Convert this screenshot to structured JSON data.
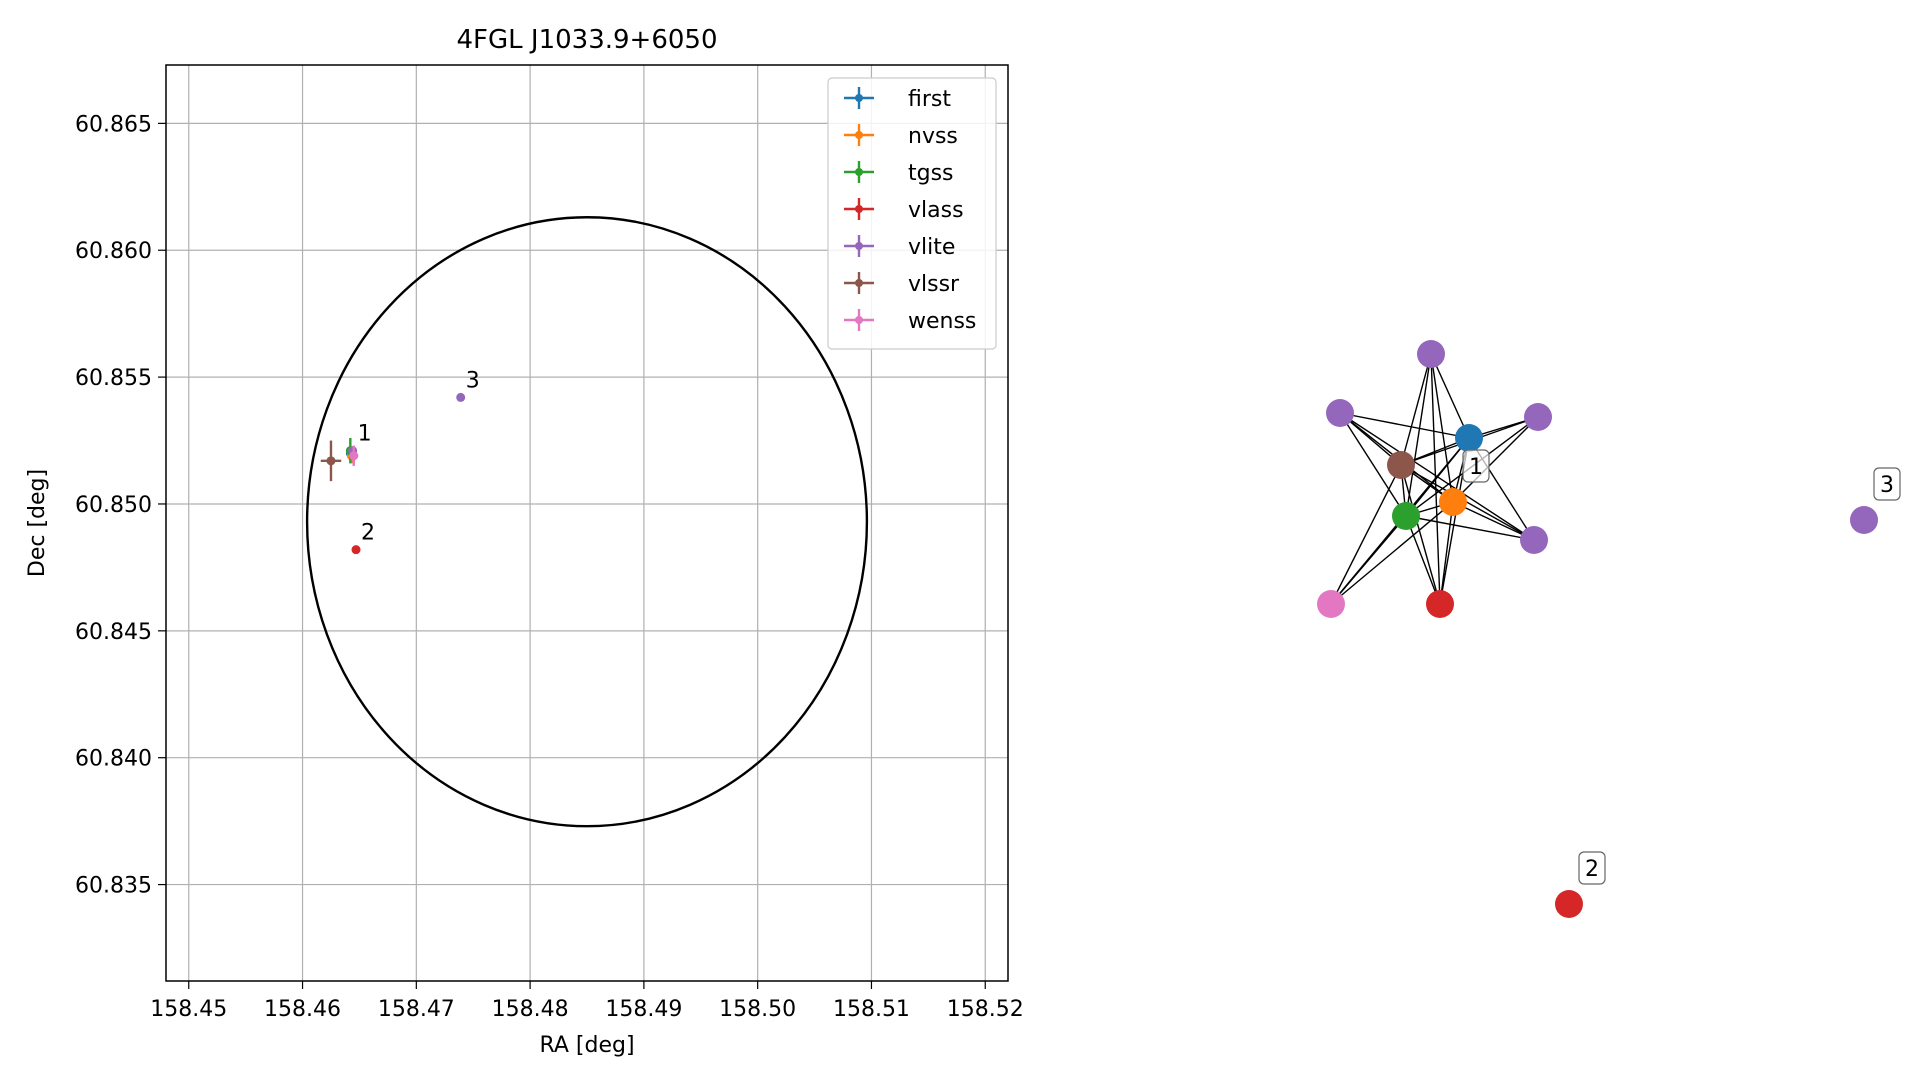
{
  "chart_data": [
    {
      "type": "scatter",
      "title": "4FGL J1033.9+6050",
      "xlabel": "RA [deg]",
      "ylabel": "Dec [deg]",
      "xlim": [
        158.448,
        158.522
      ],
      "ylim": [
        60.8312,
        60.8673
      ],
      "xticks": [
        "158.45",
        "158.46",
        "158.47",
        "158.48",
        "158.49",
        "158.50",
        "158.51",
        "158.52"
      ],
      "yticks": [
        "60.835",
        "60.840",
        "60.845",
        "60.850",
        "60.855",
        "60.860",
        "60.865"
      ],
      "grid": true,
      "legend_position": "top-right",
      "legend": [
        "first",
        "nvss",
        "tgss",
        "vlass",
        "vlite",
        "vlssr",
        "wenss"
      ],
      "colors": {
        "first": "#1f77b4",
        "nvss": "#ff7f0e",
        "tgss": "#2ca02c",
        "vlass": "#d62728",
        "vlite": "#9467bd",
        "vlssr": "#8c564b",
        "wenss": "#e377c2"
      },
      "error_ellipse": {
        "center": [
          158.485,
          60.8493
        ],
        "ra_radius": 0.0246,
        "dec_radius": 0.012
      },
      "points": [
        {
          "survey": "first",
          "ra": 158.4642,
          "dec": 60.852,
          "ra_err": 0.0002,
          "dec_err": 0.0002
        },
        {
          "survey": "nvss",
          "ra": 158.4643,
          "dec": 60.8519,
          "ra_err": 0.0003,
          "dec_err": 0.0003
        },
        {
          "survey": "tgss",
          "ra": 158.4642,
          "dec": 60.8521,
          "ra_err": 0.0002,
          "dec_err": 0.0005
        },
        {
          "survey": "vlite",
          "ra": 158.4644,
          "dec": 60.8521,
          "ra_err": 0.0001,
          "dec_err": 0.0001
        },
        {
          "survey": "wenss",
          "ra": 158.4645,
          "dec": 60.8519,
          "ra_err": 0.0004,
          "dec_err": 0.0004
        },
        {
          "survey": "vlssr",
          "ra": 158.4625,
          "dec": 60.8517,
          "ra_err": 0.0009,
          "dec_err": 0.0008
        },
        {
          "survey": "vlass",
          "ra": 158.4647,
          "dec": 60.8482,
          "ra_err": 0.0001,
          "dec_err": 0.0001
        },
        {
          "survey": "vlite",
          "ra": 158.4739,
          "dec": 60.8542,
          "ra_err": 0.0001,
          "dec_err": 0.0001
        }
      ],
      "annotations": [
        {
          "text": "1",
          "ra": 158.4644,
          "dec": 60.8521
        },
        {
          "text": "2",
          "ra": 158.4647,
          "dec": 60.8482
        },
        {
          "text": "3",
          "ra": 158.4739,
          "dec": 60.8542
        }
      ]
    },
    {
      "type": "network",
      "nodes": [
        {
          "id": "n_vlite_top",
          "survey": "vlite"
        },
        {
          "id": "n_vlite_left",
          "survey": "vlite"
        },
        {
          "id": "n_vlite_right",
          "survey": "vlite"
        },
        {
          "id": "n_vlite_lowright",
          "survey": "vlite"
        },
        {
          "id": "n_first",
          "survey": "first"
        },
        {
          "id": "n_vlssr",
          "survey": "vlssr"
        },
        {
          "id": "n_nvss",
          "survey": "nvss"
        },
        {
          "id": "n_tgss",
          "survey": "tgss"
        },
        {
          "id": "n_wenss",
          "survey": "wenss"
        },
        {
          "id": "n_vlass_1",
          "survey": "vlass"
        },
        {
          "id": "n_vlite_3",
          "survey": "vlite"
        },
        {
          "id": "n_vlass_2",
          "survey": "vlass"
        }
      ],
      "edges": [
        [
          "n_vlite_top",
          "n_vlssr"
        ],
        [
          "n_vlite_top",
          "n_nvss"
        ],
        [
          "n_vlite_top",
          "n_tgss"
        ],
        [
          "n_vlite_top",
          "n_first"
        ],
        [
          "n_vlite_top",
          "n_vlass_1"
        ],
        [
          "n_vlite_left",
          "n_first"
        ],
        [
          "n_vlite_left",
          "n_vlssr"
        ],
        [
          "n_vlite_left",
          "n_tgss"
        ],
        [
          "n_vlite_left",
          "n_nvss"
        ],
        [
          "n_vlite_left",
          "n_vlite_lowright"
        ],
        [
          "n_vlite_right",
          "n_vlssr"
        ],
        [
          "n_vlite_right",
          "n_first"
        ],
        [
          "n_vlite_right",
          "n_tgss"
        ],
        [
          "n_vlite_right",
          "n_nvss"
        ],
        [
          "n_vlite_lowright",
          "n_vlssr"
        ],
        [
          "n_vlite_lowright",
          "n_first"
        ],
        [
          "n_vlite_lowright",
          "n_tgss"
        ],
        [
          "n_vlite_lowright",
          "n_nvss"
        ],
        [
          "n_first",
          "n_vlssr"
        ],
        [
          "n_first",
          "n_tgss"
        ],
        [
          "n_first",
          "n_nvss"
        ],
        [
          "n_first",
          "n_wenss"
        ],
        [
          "n_first",
          "n_vlass_1"
        ],
        [
          "n_vlssr",
          "n_nvss"
        ],
        [
          "n_vlssr",
          "n_tgss"
        ],
        [
          "n_vlssr",
          "n_wenss"
        ],
        [
          "n_vlssr",
          "n_vlass_1"
        ],
        [
          "n_nvss",
          "n_tgss"
        ],
        [
          "n_nvss",
          "n_wenss"
        ],
        [
          "n_nvss",
          "n_vlass_1"
        ],
        [
          "n_tgss",
          "n_wenss"
        ],
        [
          "n_tgss",
          "n_vlass_1"
        ]
      ],
      "labels": [
        {
          "text": "1",
          "node": "n_nvss"
        },
        {
          "text": "3",
          "node": "n_vlite_3"
        },
        {
          "text": "2",
          "node": "n_vlass_2"
        }
      ]
    }
  ]
}
